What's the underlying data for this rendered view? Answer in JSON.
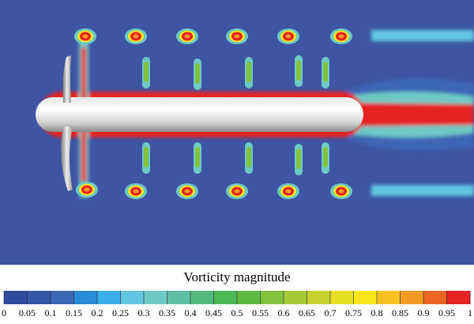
{
  "colorbar": {
    "title": "Vorticity magnitude",
    "ticks": [
      0,
      0.05,
      0.1,
      0.15,
      0.2,
      0.25,
      0.3,
      0.35,
      0.4,
      0.45,
      0.5,
      0.55,
      0.6,
      0.65,
      0.7,
      0.75,
      0.8,
      0.85,
      0.9,
      0.95,
      1
    ],
    "colors": [
      "#2e4a9e",
      "#3556a8",
      "#3d66b6",
      "#2a8ad6",
      "#3aaee6",
      "#62c6e2",
      "#6ec8c4",
      "#5ec0a2",
      "#52ba7e",
      "#4cb856",
      "#5eba42",
      "#82c23e",
      "#a4ca36",
      "#c8d230",
      "#e6de22",
      "#f8e61a",
      "#f8c020",
      "#f29a22",
      "#ee6424",
      "#e62222"
    ]
  }
}
